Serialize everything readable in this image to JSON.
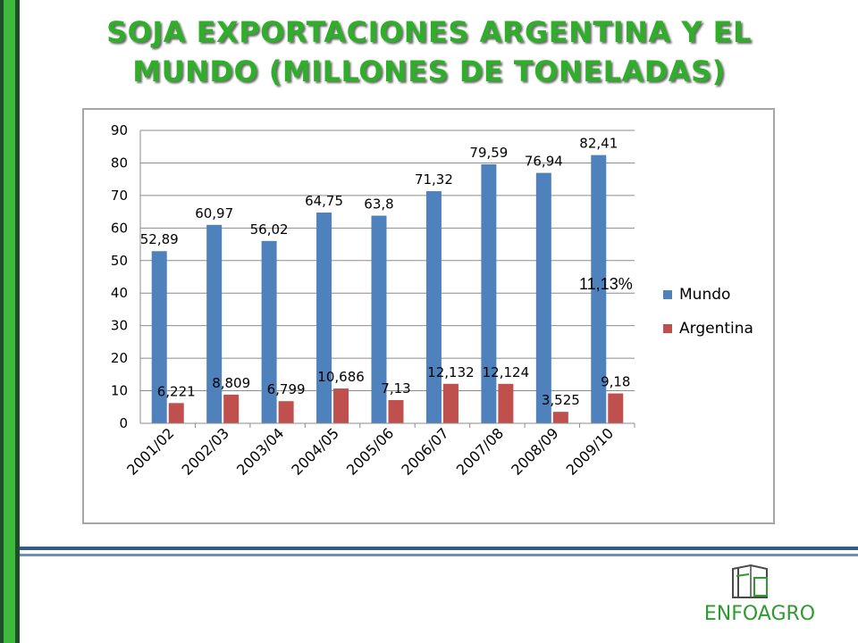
{
  "slide": {
    "title_line1": "SOJA EXPORTACIONES ARGENTINA Y EL",
    "title_line2": "MUNDO (MILLONES DE TONELADAS)",
    "annotation": "11,13%",
    "logo_text": "ENFOAGRO"
  },
  "colors": {
    "mundo": "#4f81bd",
    "argentina": "#c0504d",
    "title": "#2fae2a",
    "accent_bar": "#3fb93c"
  },
  "chart_data": {
    "type": "bar",
    "categories": [
      "2001/02",
      "2002/03",
      "2003/04",
      "2004/05",
      "2005/06",
      "2006/07",
      "2007/08",
      "2008/09",
      "2009/10"
    ],
    "series": [
      {
        "name": "Mundo",
        "values": [
          52.89,
          60.97,
          56.02,
          64.75,
          63.8,
          71.32,
          79.59,
          76.94,
          82.41
        ],
        "labels": [
          "52,89",
          "60,97",
          "56,02",
          "64,75",
          "63,8",
          "71,32",
          "79,59",
          "76,94",
          "82,41"
        ]
      },
      {
        "name": "Argentina",
        "values": [
          6.221,
          8.809,
          6.799,
          10.686,
          7.13,
          12.132,
          12.124,
          3.525,
          9.18
        ],
        "labels": [
          "6,221",
          "8,809",
          "6,799",
          "10,686",
          "7,13",
          "12,132",
          "12,124",
          "3,525",
          "9,18"
        ]
      }
    ],
    "yticks": [
      "0",
      "10",
      "20",
      "30",
      "40",
      "50",
      "60",
      "70",
      "80",
      "90"
    ],
    "ylim": [
      0,
      90
    ],
    "grid": true,
    "legend": "right"
  }
}
